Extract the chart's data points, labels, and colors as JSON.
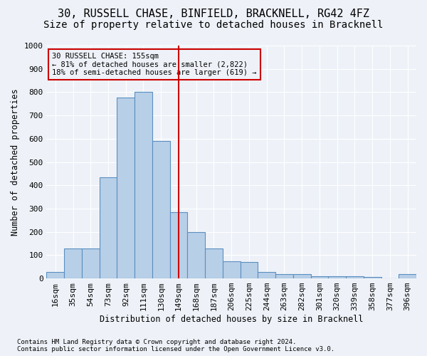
{
  "title1": "30, RUSSELL CHASE, BINFIELD, BRACKNELL, RG42 4FZ",
  "title2": "Size of property relative to detached houses in Bracknell",
  "xlabel": "Distribution of detached houses by size in Bracknell",
  "ylabel": "Number of detached properties",
  "categories": [
    "16sqm",
    "35sqm",
    "54sqm",
    "73sqm",
    "92sqm",
    "111sqm",
    "130sqm",
    "149sqm",
    "168sqm",
    "187sqm",
    "206sqm",
    "225sqm",
    "244sqm",
    "263sqm",
    "282sqm",
    "301sqm",
    "320sqm",
    "339sqm",
    "358sqm",
    "377sqm",
    "396sqm"
  ],
  "values": [
    28,
    128,
    128,
    435,
    778,
    800,
    590,
    285,
    200,
    128,
    75,
    72,
    28,
    18,
    18,
    10,
    10,
    10,
    5,
    0,
    20
  ],
  "bar_color": "#b8cfe8",
  "bar_edge_color": "#5a8fc0",
  "marker_label": "30 RUSSELL CHASE: 155sqm",
  "annotation_line1": "← 81% of detached houses are smaller (2,822)",
  "annotation_line2": "18% of semi-detached houses are larger (619) →",
  "vline_color": "#cc0000",
  "box_color": "#cc0000",
  "footnote1": "Contains HM Land Registry data © Crown copyright and database right 2024.",
  "footnote2": "Contains public sector information licensed under the Open Government Licence v3.0.",
  "ylim": [
    0,
    1000
  ],
  "yticks": [
    0,
    100,
    200,
    300,
    400,
    500,
    600,
    700,
    800,
    900,
    1000
  ],
  "background_color": "#eef2f8",
  "grid_color": "#ffffff",
  "title1_fontsize": 11,
  "title2_fontsize": 10,
  "axis_fontsize": 8.5,
  "tick_fontsize": 8,
  "footnote_fontsize": 6.5
}
